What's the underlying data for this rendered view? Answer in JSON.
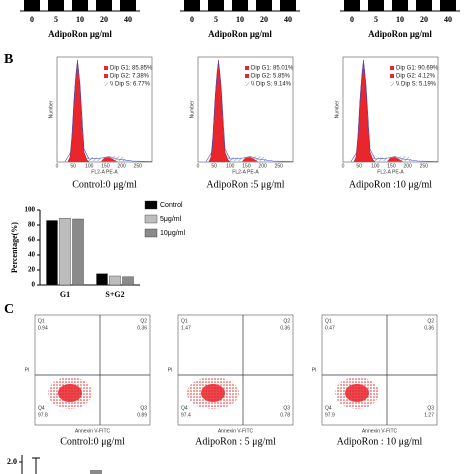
{
  "top_panels": [
    {
      "categories": [
        0,
        5,
        10,
        20,
        40
      ],
      "xlabel": "AdipoRon μg/ml"
    },
    {
      "categories": [
        0,
        5,
        10,
        20,
        40
      ],
      "xlabel": "AdipoRon μg/ml"
    },
    {
      "categories": [
        0,
        5,
        10,
        20,
        40
      ],
      "xlabel": "AdipoRon μg/ml"
    }
  ],
  "section_b": {
    "label": "B",
    "histograms": [
      {
        "legend": [
          "Dip G1: 85.85%",
          "Dip G2: 7.38%",
          "\\\\ Dip S: 6.77%"
        ],
        "caption": "Control:0 μg/ml",
        "xlabel": "FL2-A PE-A",
        "ylabel": "Number",
        "xticks": [
          0,
          50,
          100,
          150,
          200,
          250
        ]
      },
      {
        "legend": [
          "Dip G1: 85.01%",
          "Dip G2: 5.85%",
          "\\\\ Dip S: 9.14%"
        ],
        "caption": "AdipoRon :5 μg/ml",
        "xlabel": "FL2-A PE-A",
        "ylabel": "Number",
        "xticks": [
          0,
          50,
          100,
          150,
          200,
          250
        ]
      },
      {
        "legend": [
          "Dip G1: 90.69%",
          "Dip G2: 4.12%",
          "\\\\ Dip S: 5.19%"
        ],
        "caption": "AdipoRon :10 μg/ml",
        "xlabel": "FL2-A PE-A",
        "ylabel": "Number",
        "xticks": [
          0,
          50,
          100,
          150,
          200,
          250
        ]
      }
    ]
  },
  "chart_data": {
    "type": "bar",
    "ylabel": "Percentage(%)",
    "categories": [
      "G1",
      "S+G2"
    ],
    "series": [
      {
        "name": "Control",
        "color": "#000000",
        "values": [
          86,
          15
        ]
      },
      {
        "name": "5μg/ml",
        "color": "#bdbdbd",
        "values": [
          89,
          12
        ]
      },
      {
        "name": "10μg/ml",
        "color": "#8a8a8a",
        "values": [
          88,
          11
        ]
      }
    ],
    "ylim": [
      0,
      100
    ],
    "yticks": [
      0,
      20,
      40,
      60,
      80,
      100
    ]
  },
  "section_c": {
    "label": "C",
    "plots": [
      {
        "quadrants": [
          {
            "name": "Q1",
            "value": 0.94
          },
          {
            "name": "Q2",
            "value": 0.36
          },
          {
            "name": "Q4",
            "value": 97.8
          },
          {
            "name": "Q3",
            "value": 0.89
          }
        ],
        "xlabel": "Annexin V-FITC",
        "ylabel": "PI",
        "caption": "Control:0 μg/ml"
      },
      {
        "quadrants": [
          {
            "name": "Q1",
            "value": 1.47
          },
          {
            "name": "Q2",
            "value": 0.36
          },
          {
            "name": "Q4",
            "value": 97.4
          },
          {
            "name": "Q3",
            "value": 0.78
          }
        ],
        "xlabel": "Annexin V-FITC",
        "ylabel": "PI",
        "caption": "AdipoRon :  5 μg/ml"
      },
      {
        "quadrants": [
          {
            "name": "Q1",
            "value": 0.47
          },
          {
            "name": "Q2",
            "value": 0.36
          },
          {
            "name": "Q4",
            "value": 97.9
          },
          {
            "name": "Q3",
            "value": 1.27
          }
        ],
        "xlabel": "Annexin V-FITC",
        "ylabel": "PI",
        "caption": "AdipoRon : 10 μg/ml"
      }
    ]
  },
  "bottom_panel": {
    "yticks": [
      {
        "value": 2,
        "label": "2.0"
      }
    ]
  }
}
